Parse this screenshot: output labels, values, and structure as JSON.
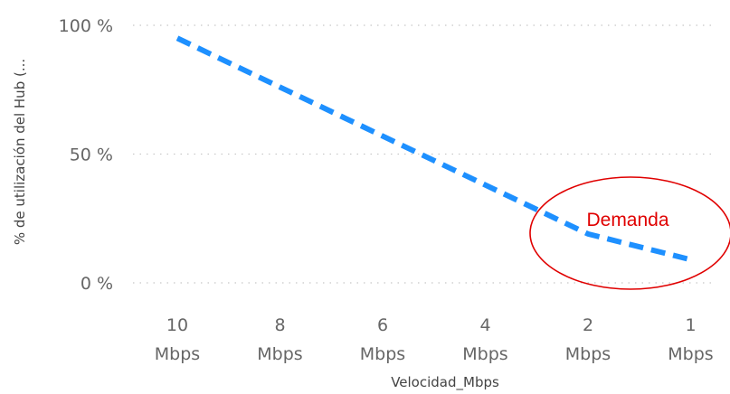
{
  "chart_data": {
    "type": "line",
    "categories": [
      "10 Mbps",
      "8 Mbps",
      "6 Mbps",
      "4 Mbps",
      "2 Mbps",
      "1 Mbps"
    ],
    "category_lines": [
      [
        "10",
        "Mbps"
      ],
      [
        "8",
        "Mbps"
      ],
      [
        "6",
        "Mbps"
      ],
      [
        "4",
        "Mbps"
      ],
      [
        "2",
        "Mbps"
      ],
      [
        "1",
        "Mbps"
      ]
    ],
    "series": [
      {
        "values": [
          95,
          76,
          57,
          38,
          19,
          9
        ],
        "color": "#1e90ff",
        "style": "dashed"
      }
    ],
    "ylim": [
      0,
      100
    ],
    "yticks": [
      {
        "value": 0,
        "label": "0 %"
      },
      {
        "value": 50,
        "label": "50 %"
      },
      {
        "value": 100,
        "label": "100 %"
      }
    ],
    "xlabel": "Velocidad_Mbps",
    "ylabel": "% de utilización del Hub (...",
    "grid": "horizontal-dotted",
    "annotation": {
      "text": "Demanda",
      "color": "#e00000"
    }
  }
}
